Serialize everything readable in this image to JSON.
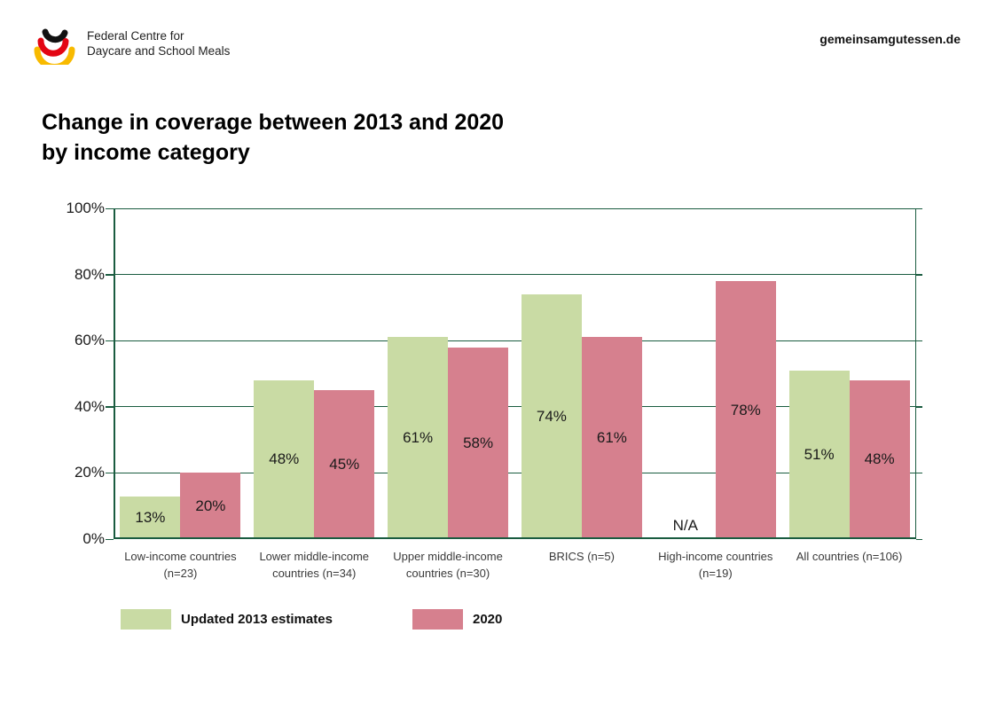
{
  "header": {
    "logo": {
      "line1": "Federal Centre for",
      "line2": "Daycare and School Meals",
      "colors": {
        "arc_top": "#111111",
        "arc_middle": "#e30613",
        "arc_bottom": "#f8ba00"
      }
    },
    "site": "gemeinsamgutessen.de"
  },
  "title": {
    "line1": "Change in coverage between 2013 and 2020",
    "line2": "by income category"
  },
  "chart_data": {
    "type": "bar",
    "title": "Change in coverage between 2013 and 2020 by income category",
    "categories": [
      "Low-income countries (n=23)",
      "Lower middle-income countries (n=34)",
      "Upper middle-income countries (n=30)",
      "BRICS (n=5)",
      "High-income countries (n=19)",
      "All countries (n=106)"
    ],
    "series": [
      {
        "name": "Updated 2013 estimates",
        "color": "#c9dba4",
        "values": [
          13,
          48,
          61,
          74,
          null,
          51
        ],
        "labels": [
          "13%",
          "48%",
          "61%",
          "74%",
          "N/A",
          "51%"
        ]
      },
      {
        "name": "2020",
        "color": "#d6808e",
        "values": [
          20,
          45,
          58,
          61,
          78,
          48
        ],
        "labels": [
          "20%",
          "45%",
          "58%",
          "61%",
          "78%",
          "48%"
        ]
      }
    ],
    "xlabel": "",
    "ylabel": "",
    "ylim": [
      0,
      100
    ],
    "ytick_values": [
      0,
      20,
      40,
      60,
      80,
      100
    ],
    "yticks": [
      "0%",
      "20%",
      "40%",
      "60%",
      "80%",
      "100%"
    ],
    "grid": true,
    "grid_color": "#1a5c40",
    "legend_position": "bottom"
  },
  "legend": {
    "items": [
      {
        "label": "Updated 2013 estimates",
        "color": "#c9dba4"
      },
      {
        "label": "2020",
        "color": "#d6808e"
      }
    ]
  }
}
